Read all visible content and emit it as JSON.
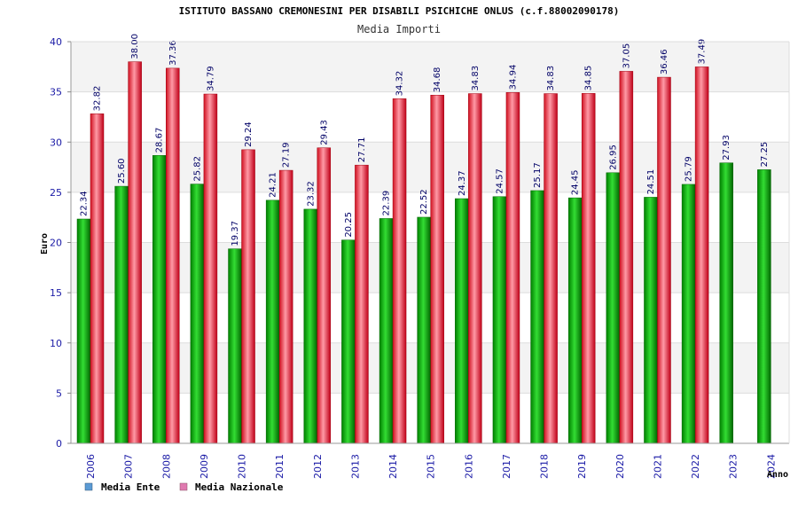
{
  "chart_data": {
    "type": "bar",
    "title": "ISTITUTO BASSANO CREMONESINI PER DISABILI PSICHICHE ONLUS (c.f.88002090178)",
    "subtitle": "Media Importi",
    "xlabel": "Anno",
    "ylabel": "Euro",
    "ylim": [
      0,
      40
    ],
    "yticks": [
      0,
      5,
      10,
      15,
      20,
      25,
      30,
      35,
      40
    ],
    "categories": [
      "2006",
      "2007",
      "2008",
      "2009",
      "2010",
      "2011",
      "2012",
      "2013",
      "2014",
      "2015",
      "2016",
      "2017",
      "2018",
      "2019",
      "2020",
      "2021",
      "2022",
      "2023",
      "2024"
    ],
    "series": [
      {
        "name": "Media Ente",
        "color": "#00aa00",
        "values": [
          22.34,
          25.6,
          28.67,
          25.82,
          19.37,
          24.21,
          23.32,
          20.25,
          22.39,
          22.52,
          24.37,
          24.57,
          25.17,
          24.45,
          26.95,
          24.51,
          25.79,
          27.93,
          27.25
        ],
        "labels": [
          "22.34",
          "25.60",
          "28.67",
          "25.82",
          "19.37",
          "24.21",
          "23.32",
          "20.25",
          "22.39",
          "22.52",
          "24.37",
          "24.57",
          "25.17",
          "24.45",
          "26.95",
          "24.51",
          "25.79",
          "27.93",
          "27.25"
        ]
      },
      {
        "name": "Media Nazionale",
        "color": "#e8202a",
        "values": [
          32.82,
          38.0,
          37.36,
          34.79,
          29.24,
          27.19,
          29.43,
          27.71,
          34.32,
          34.68,
          34.83,
          34.94,
          34.83,
          34.85,
          37.05,
          36.46,
          37.49,
          null,
          null
        ],
        "labels": [
          "32.82",
          "38.00",
          "37.36",
          "34.79",
          "29.24",
          "27.19",
          "29.43",
          "27.71",
          "34.32",
          "34.68",
          "34.83",
          "34.94",
          "34.83",
          "34.85",
          "37.05",
          "36.46",
          "37.49",
          null,
          null
        ]
      }
    ],
    "legend": {
      "position": "bottom-left",
      "entries": [
        {
          "label": "Media Ente",
          "swatch_color": "#5b9bd5"
        },
        {
          "label": "Media Nazionale",
          "swatch_color": "#e07ab0"
        }
      ]
    },
    "grid": true
  }
}
